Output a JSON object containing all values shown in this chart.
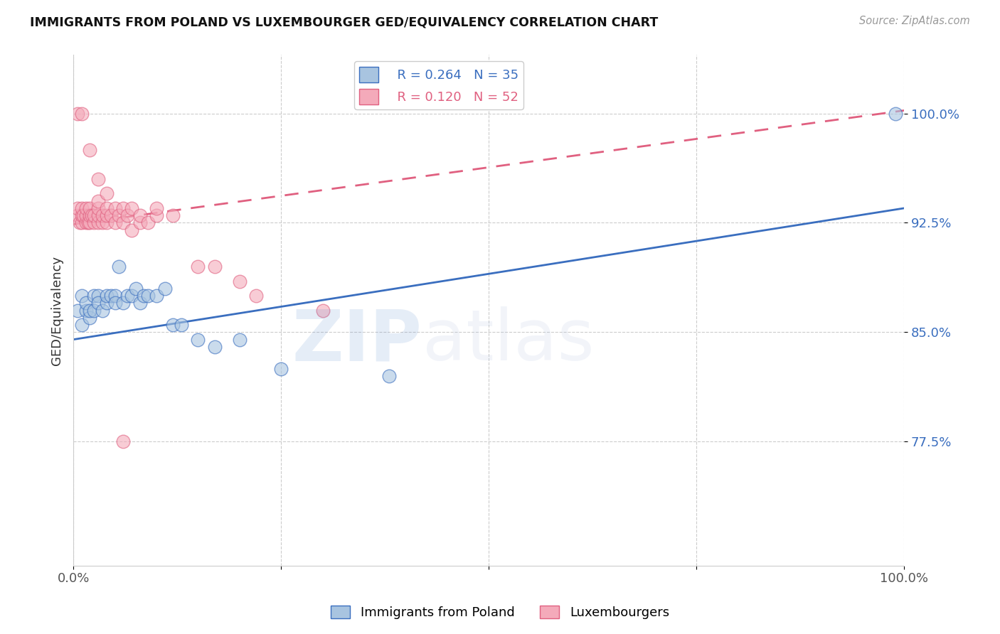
{
  "title": "IMMIGRANTS FROM POLAND VS LUXEMBOURGER GED/EQUIVALENCY CORRELATION CHART",
  "source": "Source: ZipAtlas.com",
  "ylabel": "GED/Equivalency",
  "yticks": [
    0.775,
    0.85,
    0.925,
    1.0
  ],
  "ytick_labels": [
    "77.5%",
    "85.0%",
    "92.5%",
    "100.0%"
  ],
  "xlim": [
    0.0,
    1.0
  ],
  "ylim": [
    0.69,
    1.04
  ],
  "legend_R1": "0.264",
  "legend_N1": "35",
  "legend_R2": "0.120",
  "legend_N2": "52",
  "color_blue": "#A8C4E0",
  "color_pink": "#F4AABA",
  "color_blue_line": "#3A6EBF",
  "color_pink_line": "#E06080",
  "watermark_zip": "ZIP",
  "watermark_atlas": "atlas",
  "poland_x": [
    0.005,
    0.01,
    0.01,
    0.015,
    0.015,
    0.02,
    0.02,
    0.025,
    0.025,
    0.03,
    0.03,
    0.035,
    0.04,
    0.04,
    0.045,
    0.05,
    0.05,
    0.055,
    0.06,
    0.065,
    0.07,
    0.075,
    0.08,
    0.085,
    0.09,
    0.1,
    0.11,
    0.12,
    0.13,
    0.15,
    0.17,
    0.2,
    0.25,
    0.38,
    0.99
  ],
  "poland_y": [
    0.865,
    0.855,
    0.875,
    0.865,
    0.87,
    0.86,
    0.865,
    0.875,
    0.865,
    0.875,
    0.87,
    0.865,
    0.87,
    0.875,
    0.875,
    0.875,
    0.87,
    0.895,
    0.87,
    0.875,
    0.875,
    0.88,
    0.87,
    0.875,
    0.875,
    0.875,
    0.88,
    0.855,
    0.855,
    0.845,
    0.84,
    0.845,
    0.825,
    0.82,
    1.0
  ],
  "luxembourger_x": [
    0.005,
    0.005,
    0.008,
    0.01,
    0.01,
    0.01,
    0.012,
    0.015,
    0.015,
    0.015,
    0.018,
    0.02,
    0.02,
    0.02,
    0.022,
    0.025,
    0.025,
    0.03,
    0.03,
    0.03,
    0.03,
    0.035,
    0.035,
    0.04,
    0.04,
    0.04,
    0.045,
    0.05,
    0.05,
    0.055,
    0.06,
    0.06,
    0.065,
    0.07,
    0.07,
    0.08,
    0.08,
    0.09,
    0.1,
    0.1,
    0.12,
    0.15,
    0.17,
    0.2,
    0.22,
    0.3,
    0.005,
    0.01,
    0.02,
    0.03,
    0.04,
    0.06
  ],
  "luxembourger_y": [
    0.93,
    0.935,
    0.925,
    0.925,
    0.93,
    0.935,
    0.93,
    0.925,
    0.93,
    0.935,
    0.925,
    0.925,
    0.93,
    0.935,
    0.93,
    0.925,
    0.93,
    0.925,
    0.93,
    0.935,
    0.94,
    0.925,
    0.93,
    0.925,
    0.93,
    0.935,
    0.93,
    0.925,
    0.935,
    0.93,
    0.925,
    0.935,
    0.93,
    0.92,
    0.935,
    0.925,
    0.93,
    0.925,
    0.93,
    0.935,
    0.93,
    0.895,
    0.895,
    0.885,
    0.875,
    0.865,
    1.0,
    1.0,
    0.975,
    0.955,
    0.945,
    0.775
  ]
}
